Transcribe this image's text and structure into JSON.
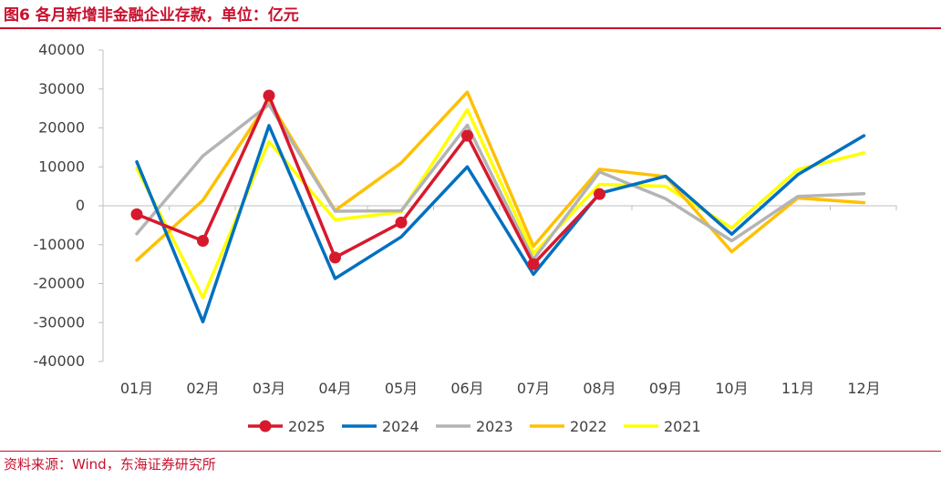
{
  "figure": {
    "title": "图6  各月新增非金融企业存款，单位：亿元",
    "source": "资料来源：Wind，东海证券研究所"
  },
  "chart_data": {
    "type": "line",
    "categories": [
      "01月",
      "02月",
      "03月",
      "04月",
      "05月",
      "06月",
      "07月",
      "08月",
      "09月",
      "10月",
      "11月",
      "12月"
    ],
    "ylim": [
      -40000,
      40000
    ],
    "yticks": [
      40000,
      30000,
      20000,
      10000,
      0,
      -10000,
      -20000,
      -30000,
      -40000
    ],
    "grid": false,
    "legend_position": "bottom",
    "series": [
      {
        "name": "2025",
        "color": "#d7192d",
        "markers": true,
        "values": [
          -2200,
          -9000,
          28300,
          -13300,
          -4300,
          18000,
          -15000,
          3000,
          null,
          null,
          null,
          null
        ]
      },
      {
        "name": "2024",
        "color": "#0070c0",
        "markers": false,
        "values": [
          11300,
          -29800,
          20600,
          -18700,
          -8000,
          10000,
          -17600,
          3200,
          7600,
          -7300,
          8000,
          18000
        ]
      },
      {
        "name": "2023",
        "color": "#b4b4b4",
        "markers": false,
        "values": [
          -7200,
          12800,
          26000,
          -1400,
          -1300,
          20700,
          -13800,
          8700,
          1800,
          -9000,
          2400,
          3100
        ]
      },
      {
        "name": "2022",
        "color": "#ffc000",
        "markers": false,
        "values": [
          -14000,
          1400,
          27000,
          -1200,
          11000,
          29200,
          -10400,
          9400,
          7500,
          -11800,
          2000,
          800
        ]
      },
      {
        "name": "2021",
        "color": "#ffff00",
        "markers": false,
        "values": [
          9600,
          -23600,
          16500,
          -3600,
          -1600,
          24700,
          -12300,
          5500,
          5000,
          -5700,
          9300,
          13600
        ]
      }
    ]
  }
}
